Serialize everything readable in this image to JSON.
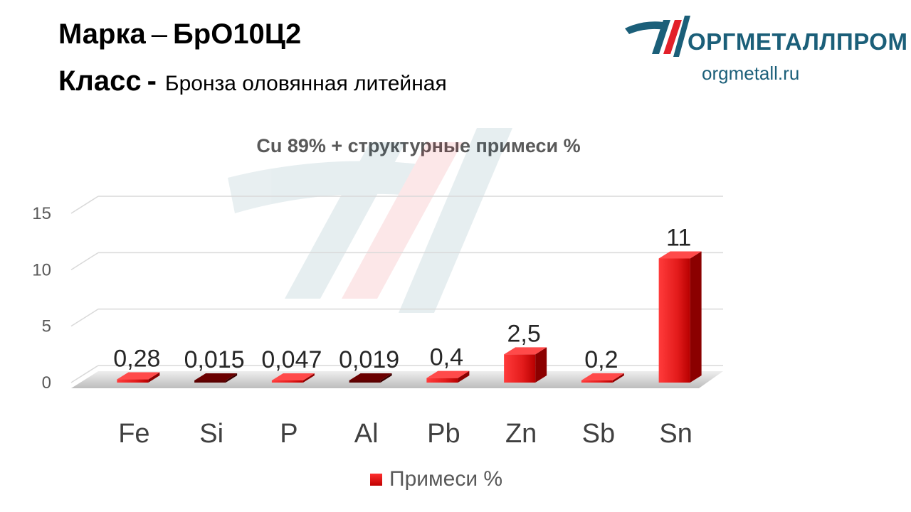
{
  "header": {
    "grade_label": "Марка",
    "grade_dash": "–",
    "grade_value": "БрО10Ц2",
    "class_label": "Класс",
    "class_sep": "-",
    "class_value": "Бронза оловянная литейная"
  },
  "brand": {
    "name": "ОРГМЕТАЛЛПРОМ",
    "url": "orgmetall.ru",
    "colors": {
      "blue": "#1b5f79",
      "red": "#e3202a"
    }
  },
  "chart_data": {
    "type": "bar",
    "title": "Cu 89% + структурные примеси %",
    "categories": [
      "Fe",
      "Si",
      "P",
      "Al",
      "Pb",
      "Zn",
      "Sb",
      "Sn"
    ],
    "series": [
      {
        "name": "Примеси %",
        "values": [
          0.28,
          0.015,
          0.047,
          0.019,
          0.4,
          2.5,
          0.2,
          11
        ],
        "labels": [
          "0,28",
          "0,015",
          "0,047",
          "0,019",
          "0,4",
          "2,5",
          "0,2",
          "11"
        ],
        "color": "#e31b1b"
      }
    ],
    "ylim": [
      0,
      15
    ],
    "yticks": [
      0,
      5,
      10,
      15
    ],
    "grid": true,
    "legend": "bottom",
    "style": "3d"
  }
}
